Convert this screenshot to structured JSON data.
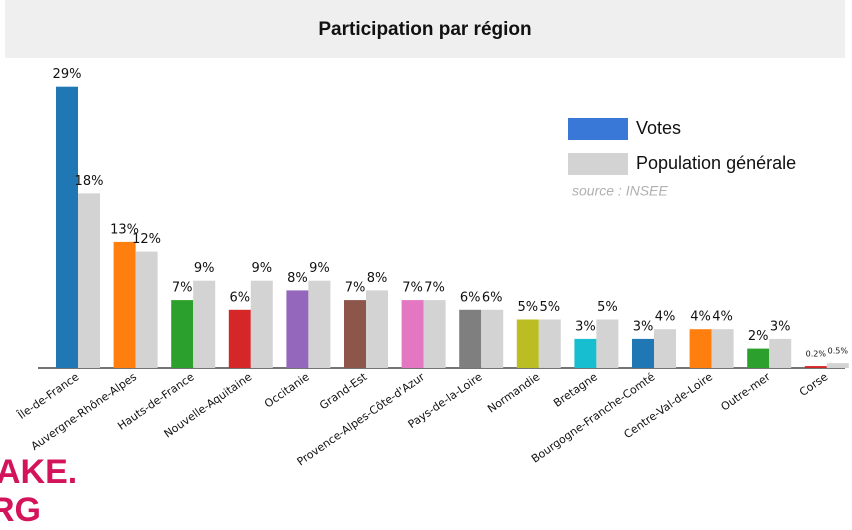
{
  "chart_data": {
    "type": "bar",
    "title": "Participation par région",
    "categories": [
      "Île-de-France",
      "Auvergne-Rhône-Alpes",
      "Hauts-de-France",
      "Nouvelle-Aquitaine",
      "Occitanie",
      "Grand-Est",
      "Provence-Alpes-Côte-d'Azur",
      "Pays-de-la-Loire",
      "Normandie",
      "Bretagne",
      "Bourgogne-Franche-Comté",
      "Centre-Val-de-Loire",
      "Outre-mer",
      "Corse"
    ],
    "series": [
      {
        "name": "Votes",
        "color": "#3a78d8",
        "colors": [
          "#1f77b4",
          "#ff7f0e",
          "#2ca02c",
          "#d62728",
          "#9467bd",
          "#8c564b",
          "#e377c2",
          "#7f7f7f",
          "#bcbd22",
          "#17becf",
          "#1f77b4",
          "#ff7f0e",
          "#2ca02c",
          "#d62728"
        ],
        "values": [
          29,
          13,
          7,
          6,
          8,
          7,
          7,
          6,
          5,
          3,
          3,
          4,
          2,
          0.2
        ],
        "value_labels": [
          "29%",
          "13%",
          "7%",
          "6%",
          "8%",
          "7%",
          "7%",
          "6%",
          "5%",
          "3%",
          "3%",
          "4%",
          "2%",
          "0.2%"
        ]
      },
      {
        "name": "Population générale",
        "color": "#d3d3d3",
        "values": [
          18,
          12,
          9,
          9,
          9,
          8,
          7,
          6,
          5,
          5,
          4,
          4,
          3,
          0.5
        ],
        "value_labels": [
          "18%",
          "12%",
          "9%",
          "9%",
          "9%",
          "8%",
          "7%",
          "6%",
          "5%",
          "5%",
          "4%",
          "4%",
          "3%",
          "0.5%"
        ]
      }
    ],
    "ylim": [
      0,
      30
    ],
    "source": "source : INSEE",
    "logo": [
      "AKE.",
      "RG"
    ]
  }
}
